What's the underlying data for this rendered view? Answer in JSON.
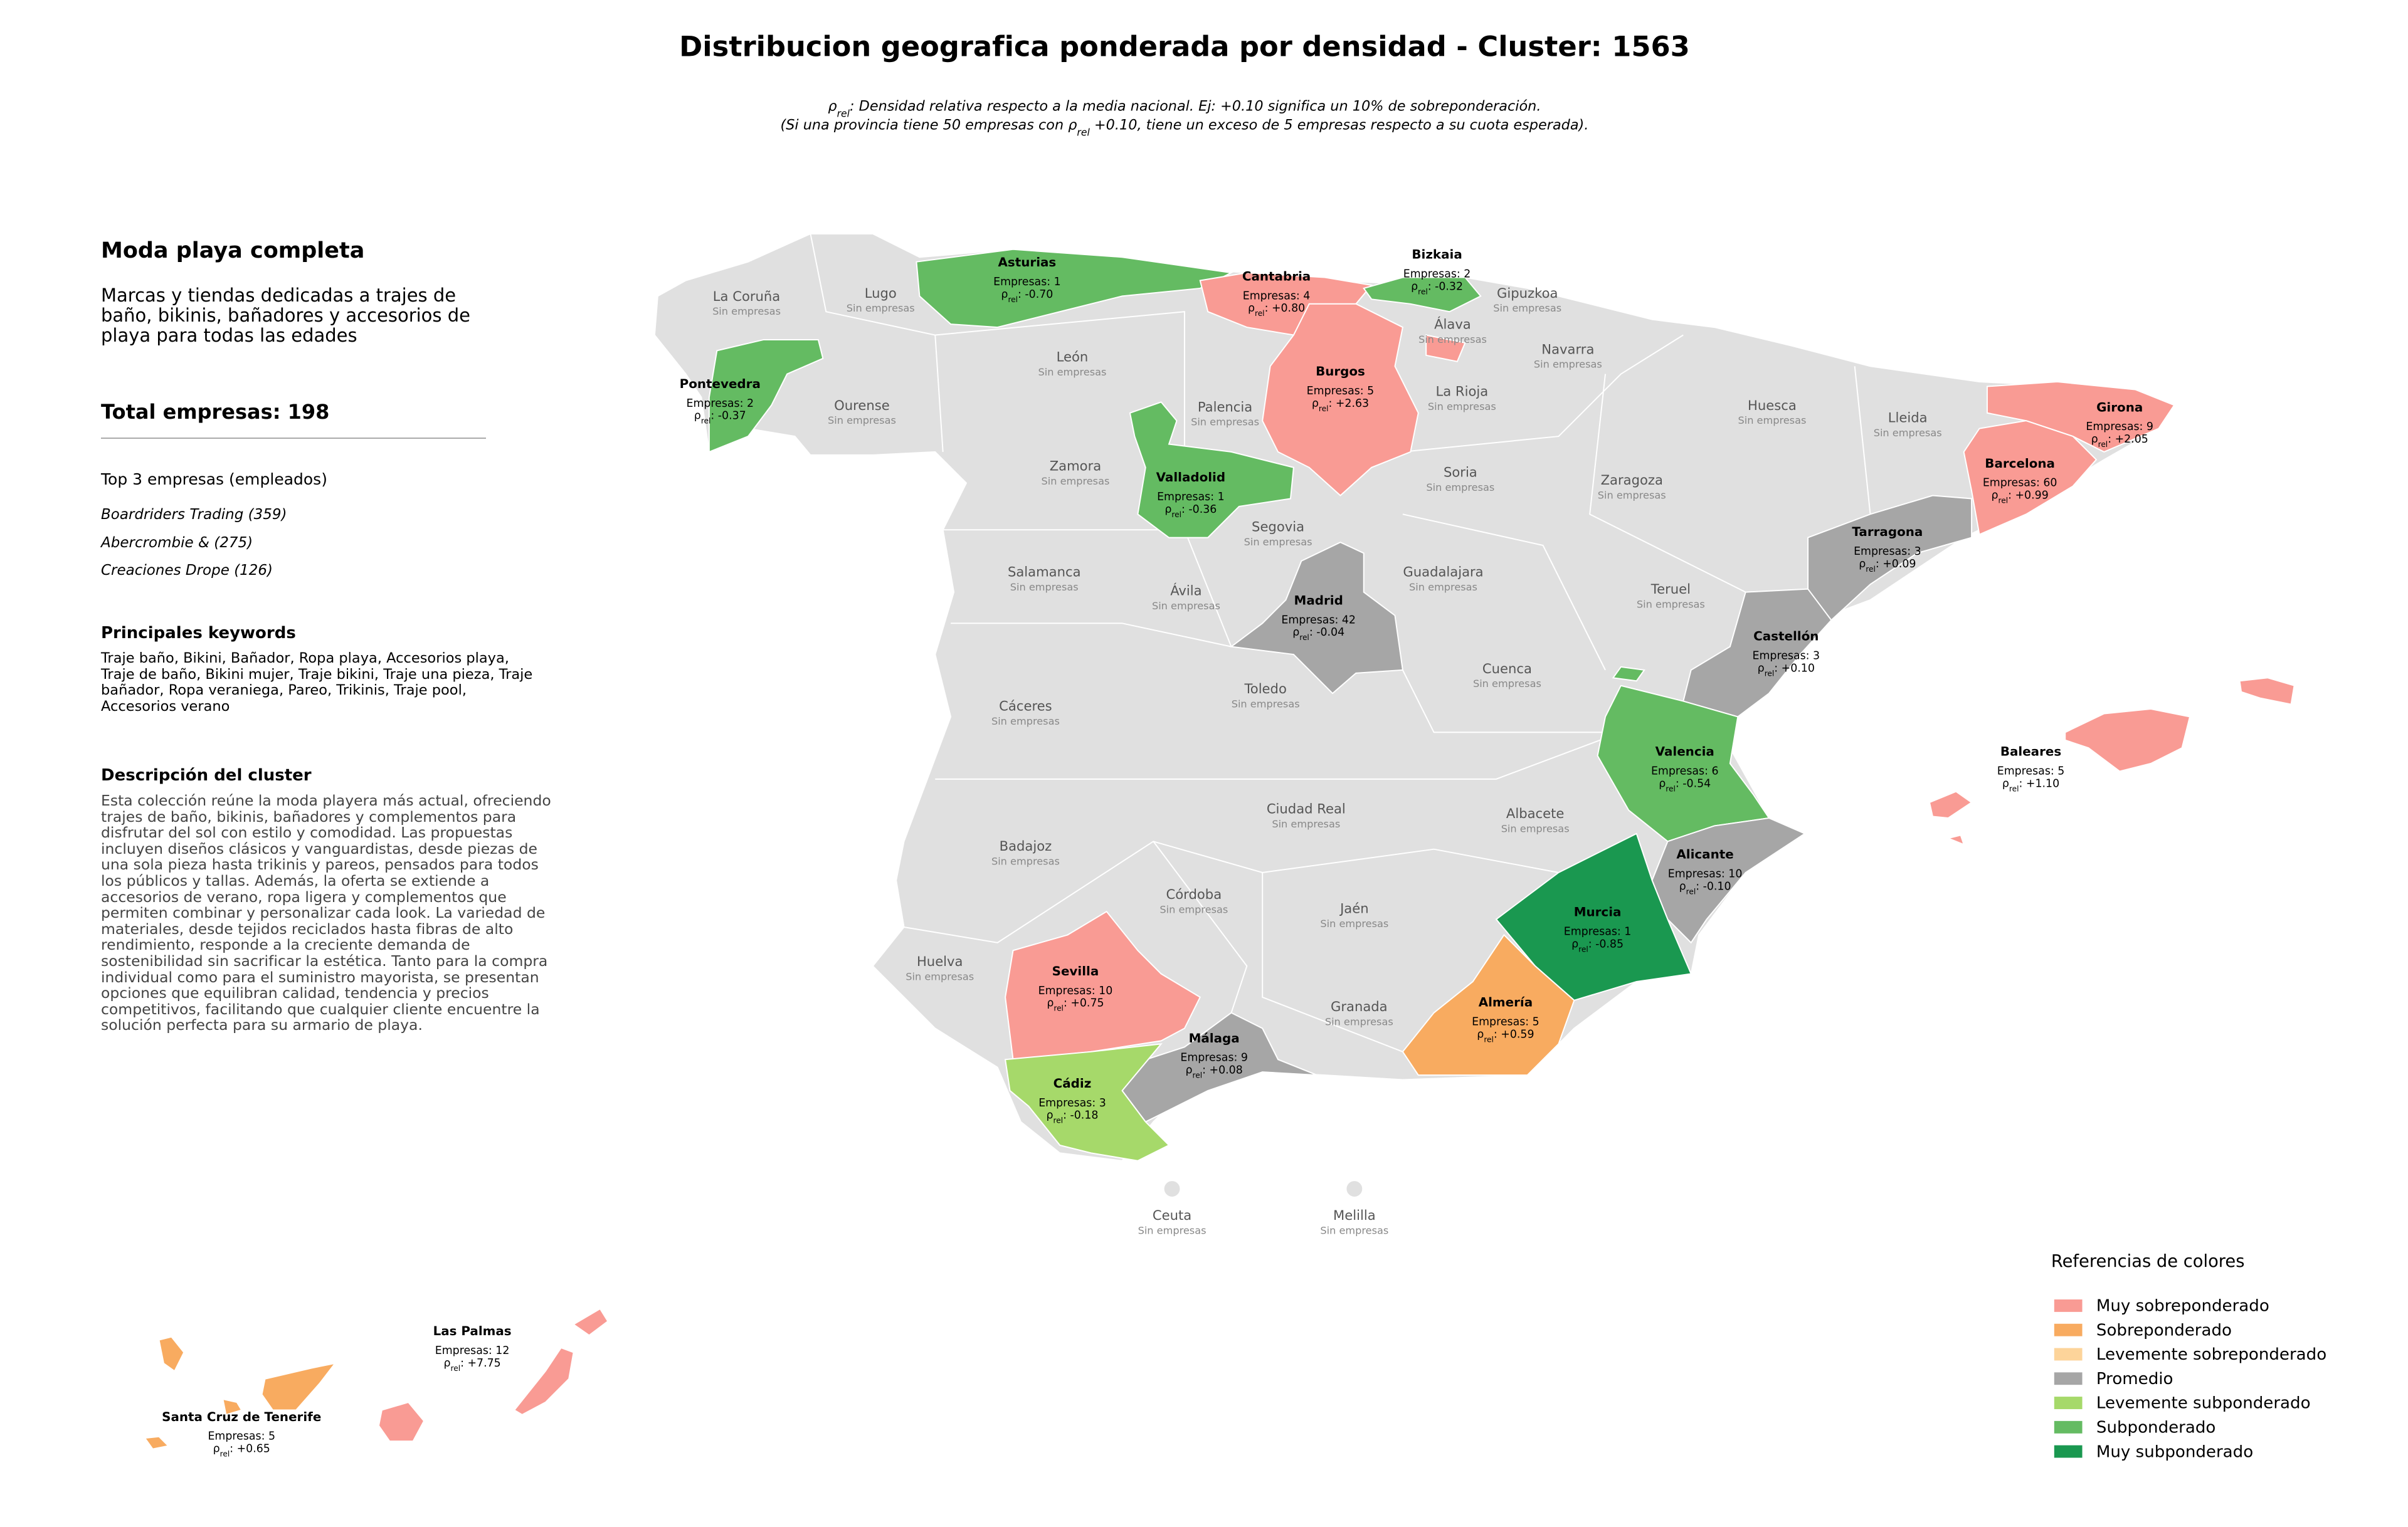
{
  "header": {
    "title": "Distribucion geografica ponderada por densidad - Cluster: 1563",
    "subtitle_lines": [
      [
        "ρ",
        "rel",
        ": Densidad relativa respecto a la media nacional. Ej: +0.10 significa un 10% de sobreponderación."
      ],
      [
        "(Si una provincia tiene 50 empresas con ρ",
        "rel",
        " +0.10, tiene un exceso de 5 empresas respecto a su cuota esperada)."
      ]
    ]
  },
  "sidebar": {
    "cluster_name": "Moda playa completa",
    "cluster_summary": "Marcas y tiendas dedicadas a trajes de baño, bikinis, bañadores y accesorios de playa para todas las edades",
    "total": "Total empresas: 198",
    "top_heading": "Top 3 empresas (empleados)",
    "top_companies": [
      "Boardriders Trading (359)",
      "Abercrombie & (275)",
      "Creaciones Drope (126)"
    ],
    "keywords_heading": "Principales keywords",
    "keywords": "Traje baño, Bikini, Bañador, Ropa playa, Accesorios playa, Traje de baño, Bikini mujer, Traje bikini, Traje una pieza, Traje bañador, Ropa veraniega, Pareo, Trikinis, Traje pool, Accesorios verano",
    "description_heading": "Descripción del cluster",
    "description": "Esta colección reúne la moda playera más actual, ofreciendo trajes de baño, bikinis, bañadores y complementos para disfrutar del sol con estilo y comodidad. Las propuestas incluyen diseños clásicos y vanguardistas, desde piezas de una sola pieza hasta trikinis y pareos, pensados para todos los públicos y tallas. Además, la oferta se extiende a accesorios de verano, ropa ligera y complementos que permiten combinar y personalizar cada look. La variedad de materiales, desde tejidos reciclados hasta fibras de alto rendimiento, responde a la creciente demanda de sostenibilidad sin sacrificar la estética. Tanto para la compra individual como para el suministro mayorista, se presentan opciones que equilibran calidad, tendencia y precios competitivos, facilitando que cualquier cliente encuentre la solución perfecta para su armario de playa."
  },
  "map": {
    "provinces": [
      {
        "name": "Asturias",
        "count_label": "Empresas: 1",
        "rho_parts": [
          "ρ",
          "rel",
          ": -0.70"
        ],
        "color": "#64bb62"
      },
      {
        "name": "Cantabria",
        "count_label": "Empresas: 4",
        "rho_parts": [
          "ρ",
          "rel",
          ": +0.80"
        ],
        "color": "#f99b94"
      },
      {
        "name": "Bizkaia",
        "count_label": "Empresas: 2",
        "rho_parts": [
          "ρ",
          "rel",
          ": -0.32"
        ],
        "color": "#64bb62"
      },
      {
        "name": "Burgos",
        "count_label": "Empresas: 5",
        "rho_parts": [
          "ρ",
          "rel",
          ": +2.63"
        ],
        "color": "#f99b94"
      },
      {
        "name": "Pontevedra",
        "count_label": "Empresas: 2",
        "rho_parts": [
          "ρ",
          "rel",
          ": -0.37"
        ],
        "color": "#64bb62"
      },
      {
        "name": "Valladolid",
        "count_label": "Empresas: 1",
        "rho_parts": [
          "ρ",
          "rel",
          ": -0.36"
        ],
        "color": "#64bb62"
      },
      {
        "name": "Madrid",
        "count_label": "Empresas: 42",
        "rho_parts": [
          "ρ",
          "rel",
          ": -0.04"
        ],
        "color": "#a6a6a6"
      },
      {
        "name": "Girona",
        "count_label": "Empresas: 9",
        "rho_parts": [
          "ρ",
          "rel",
          ": +2.05"
        ],
        "color": "#f99b94"
      },
      {
        "name": "Barcelona",
        "count_label": "Empresas: 60",
        "rho_parts": [
          "ρ",
          "rel",
          ": +0.99"
        ],
        "color": "#f99b94"
      },
      {
        "name": "Tarragona",
        "count_label": "Empresas: 3",
        "rho_parts": [
          "ρ",
          "rel",
          ": +0.09"
        ],
        "color": "#a6a6a6"
      },
      {
        "name": "Castellón",
        "count_label": "Empresas: 3",
        "rho_parts": [
          "ρ",
          "rel",
          ": +0.10"
        ],
        "color": "#a6a6a6"
      },
      {
        "name": "Valencia",
        "count_label": "Empresas: 6",
        "rho_parts": [
          "ρ",
          "rel",
          ": -0.54"
        ],
        "color": "#64bb62"
      },
      {
        "name": "Alicante",
        "count_label": "Empresas: 10",
        "rho_parts": [
          "ρ",
          "rel",
          ": -0.10"
        ],
        "color": "#a6a6a6"
      },
      {
        "name": "Murcia",
        "count_label": "Empresas: 1",
        "rho_parts": [
          "ρ",
          "rel",
          ": -0.85"
        ],
        "color": "#1a9850"
      },
      {
        "name": "Almería",
        "count_label": "Empresas: 5",
        "rho_parts": [
          "ρ",
          "rel",
          ": +0.59"
        ],
        "color": "#f8ab60"
      },
      {
        "name": "Sevilla",
        "count_label": "Empresas: 10",
        "rho_parts": [
          "ρ",
          "rel",
          ": +0.75"
        ],
        "color": "#f99b94"
      },
      {
        "name": "Málaga",
        "count_label": "Empresas: 9",
        "rho_parts": [
          "ρ",
          "rel",
          ": +0.08"
        ],
        "color": "#a6a6a6"
      },
      {
        "name": "Cádiz",
        "count_label": "Empresas: 3",
        "rho_parts": [
          "ρ",
          "rel",
          ": -0.18"
        ],
        "color": "#a6d96a"
      },
      {
        "name": "Baleares",
        "count_label": "Empresas: 5",
        "rho_parts": [
          "ρ",
          "rel",
          ": +1.10"
        ],
        "color": "#f99b94"
      },
      {
        "name": "Las Palmas",
        "count_label": "Empresas: 12",
        "rho_parts": [
          "ρ",
          "rel",
          ": +7.75"
        ],
        "color": "#f99b94"
      },
      {
        "name": "Santa Cruz de Tenerife",
        "count_label": "Empresas: 5",
        "rho_parts": [
          "ρ",
          "rel",
          ": +0.65"
        ],
        "color": "#f8ab60"
      },
      {
        "name": "La Coruña",
        "count_label": "Sin empresas"
      },
      {
        "name": "Lugo",
        "count_label": "Sin empresas"
      },
      {
        "name": "Álava",
        "count_label": "Sin empresas"
      },
      {
        "name": "Gipuzkoa",
        "count_label": "Sin empresas"
      },
      {
        "name": "Navarra",
        "count_label": "Sin empresas"
      },
      {
        "name": "León",
        "count_label": "Sin empresas"
      },
      {
        "name": "Ourense",
        "count_label": "Sin empresas"
      },
      {
        "name": "Palencia",
        "count_label": "Sin empresas"
      },
      {
        "name": "La Rioja",
        "count_label": "Sin empresas"
      },
      {
        "name": "Huesca",
        "count_label": "Sin empresas"
      },
      {
        "name": "Lleida",
        "count_label": "Sin empresas"
      },
      {
        "name": "Zamora",
        "count_label": "Sin empresas"
      },
      {
        "name": "Soria",
        "count_label": "Sin empresas"
      },
      {
        "name": "Zaragoza",
        "count_label": "Sin empresas"
      },
      {
        "name": "Segovia",
        "count_label": "Sin empresas"
      },
      {
        "name": "Salamanca",
        "count_label": "Sin empresas"
      },
      {
        "name": "Guadalajara",
        "count_label": "Sin empresas"
      },
      {
        "name": "Ávila",
        "count_label": "Sin empresas"
      },
      {
        "name": "Teruel",
        "count_label": "Sin empresas"
      },
      {
        "name": "Cuenca",
        "count_label": "Sin empresas"
      },
      {
        "name": "Toledo",
        "count_label": "Sin empresas"
      },
      {
        "name": "Cáceres",
        "count_label": "Sin empresas"
      },
      {
        "name": "Ciudad Real",
        "count_label": "Sin empresas"
      },
      {
        "name": "Albacete",
        "count_label": "Sin empresas"
      },
      {
        "name": "Badajoz",
        "count_label": "Sin empresas"
      },
      {
        "name": "Córdoba",
        "count_label": "Sin empresas"
      },
      {
        "name": "Jaén",
        "count_label": "Sin empresas"
      },
      {
        "name": "Huelva",
        "count_label": "Sin empresas"
      },
      {
        "name": "Granada",
        "count_label": "Sin empresas"
      },
      {
        "name": "Ceuta",
        "count_label": "Sin empresas"
      },
      {
        "name": "Melilla",
        "count_label": "Sin empresas"
      }
    ]
  },
  "legend": {
    "title": "Referencias de colores",
    "items": [
      {
        "name": "Muy sobreponderado",
        "color": "#f99b94"
      },
      {
        "name": "Sobreponderado",
        "color": "#f8ab60"
      },
      {
        "name": "Levemente sobreponderado",
        "color": "#fdd49a"
      },
      {
        "name": "Promedio",
        "color": "#a6a6a6"
      },
      {
        "name": "Levemente subponderado",
        "color": "#a6d96a"
      },
      {
        "name": "Subponderado",
        "color": "#64bb62"
      },
      {
        "name": "Muy subponderado",
        "color": "#1a9850"
      }
    ]
  }
}
